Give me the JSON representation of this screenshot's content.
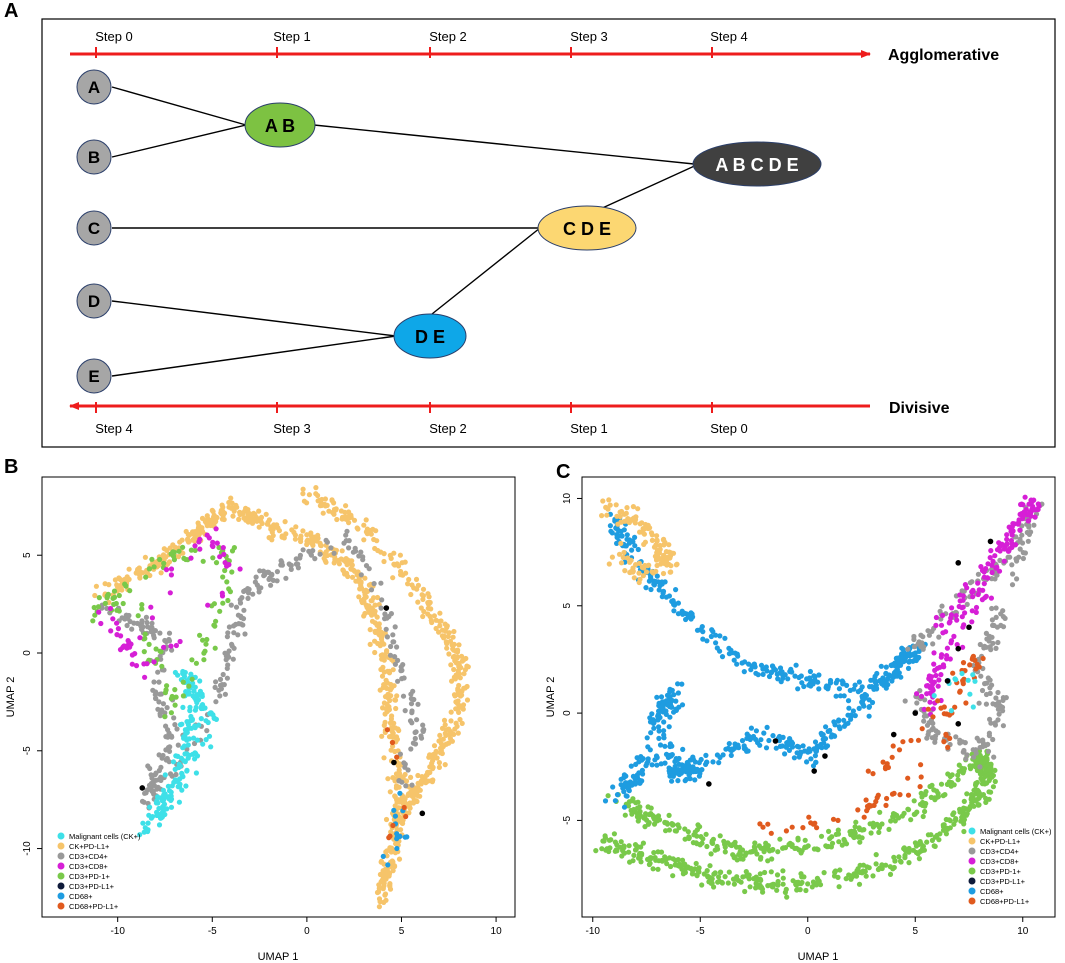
{
  "panels": {
    "a": "A",
    "b": "B",
    "c": "C"
  },
  "dendrogram": {
    "top_steps": [
      "Step 0",
      "Step 1",
      "Step 2",
      "Step 3",
      "Step 4"
    ],
    "bottom_steps": [
      "Step 4",
      "Step 3",
      "Step 2",
      "Step 1",
      "Step 0"
    ],
    "agglomerative_label": "Agglomerative",
    "divisive_label": "Divisive",
    "leaves": [
      "A",
      "B",
      "C",
      "D",
      "E"
    ],
    "clusters": {
      "ab": "A B",
      "de": "D E",
      "cde": "C D E",
      "abcde": "A B C D E"
    },
    "colors": {
      "arrow": "#ee1c1c",
      "leaf": "#a6a6a6",
      "ab": "#7dc242",
      "de": "#0ea7e8",
      "cde": "#fcd772",
      "abcde": "#404040"
    }
  },
  "chart_data": [
    {
      "type": "scatter",
      "panel": "B",
      "xlabel": "UMAP 1",
      "ylabel": "UMAP 2",
      "xlim": [
        -14,
        11
      ],
      "ylim": [
        -13.5,
        9
      ],
      "xticks": [
        "-10",
        "-5",
        "0",
        "5",
        "10"
      ],
      "xtick_values": [
        -10,
        -5,
        0,
        5,
        10
      ],
      "yticks": [
        "-10",
        "-5",
        "0",
        "5"
      ],
      "ytick_values": [
        -10,
        -5,
        0,
        5
      ],
      "legend_position": "bottom-left",
      "series": [
        {
          "name": "Malignant cells (CK+)",
          "color": "#3ee0e8"
        },
        {
          "name": "CK+PD-L1+",
          "color": "#f6c46a"
        },
        {
          "name": "CD3+CD4+",
          "color": "#999999"
        },
        {
          "name": "CD3+CD8+",
          "color": "#d61fd6"
        },
        {
          "name": "CD3+PD-1+",
          "color": "#79c94a"
        },
        {
          "name": "CD3+PD-L1+",
          "color": "#0f1a3a"
        },
        {
          "name": "CD68+",
          "color": "#1e9ce0"
        },
        {
          "name": "CD68+PD-L1+",
          "color": "#e05a1e"
        }
      ],
      "regions": [
        {
          "series": "CK+PD-L1+",
          "path": [
            [
              0,
              8
            ],
            [
              3,
              6.5
            ],
            [
              6,
              3
            ],
            [
              8,
              0
            ],
            [
              8,
              -3
            ],
            [
              6.5,
              -6
            ],
            [
              5,
              -8
            ],
            [
              4,
              -12.5
            ],
            [
              5,
              -8
            ],
            [
              4.5,
              -4
            ],
            [
              4,
              0
            ],
            [
              3,
              3.5
            ],
            [
              1,
              5.5
            ],
            [
              -2,
              6.5
            ],
            [
              -4,
              7.5
            ],
            [
              -6,
              6
            ],
            [
              -8,
              4.5
            ],
            [
              -11,
              3
            ]
          ],
          "n": 900
        },
        {
          "series": "CD3+CD4+",
          "path": [
            [
              -11,
              2.5
            ],
            [
              -9,
              1.5
            ],
            [
              -7.5,
              0.5
            ],
            [
              -8,
              -2
            ],
            [
              -7,
              -4
            ],
            [
              -8,
              -6
            ],
            [
              -8.5,
              -7.5
            ],
            [
              -7,
              -6
            ],
            [
              -5,
              -3
            ],
            [
              -4,
              0
            ],
            [
              -3.5,
              2.5
            ],
            [
              -2,
              4
            ],
            [
              0,
              5
            ],
            [
              2,
              6
            ],
            [
              4,
              3
            ],
            [
              5,
              -1
            ],
            [
              6,
              -4
            ],
            [
              5,
              -7
            ]
          ],
          "n": 320
        },
        {
          "series": "Malignant cells (CK+)",
          "path": [
            [
              -8.5,
              -9
            ],
            [
              -7.5,
              -7
            ],
            [
              -6.5,
              -5
            ],
            [
              -6,
              -3
            ],
            [
              -6.5,
              -1
            ],
            [
              -5,
              -3.5
            ],
            [
              -7,
              -7.5
            ],
            [
              -8,
              -8.5
            ]
          ],
          "n": 180
        },
        {
          "series": "CD3+PD-1+",
          "path": [
            [
              -11,
              3
            ],
            [
              -9,
              2
            ],
            [
              -8,
              0
            ],
            [
              -7,
              -3
            ],
            [
              -5,
              1
            ],
            [
              -4,
              5
            ],
            [
              -7,
              5
            ],
            [
              -9,
              4
            ],
            [
              -11,
              2
            ]
          ],
          "n": 110
        },
        {
          "series": "CD3+CD8+",
          "path": [
            [
              -11,
              2.5
            ],
            [
              -10,
              1
            ],
            [
              -9,
              -0.5
            ],
            [
              -7,
              4.5
            ],
            [
              -5,
              6
            ],
            [
              -4,
              4
            ],
            [
              -8,
              -1
            ],
            [
              -10,
              1.5
            ]
          ],
          "n": 60
        },
        {
          "series": "CD68+",
          "path": [
            [
              4,
              -11
            ],
            [
              5,
              -9
            ],
            [
              4.5,
              -7
            ]
          ],
          "n": 14
        },
        {
          "series": "CD68+PD-L1+",
          "path": [
            [
              4,
              -10
            ],
            [
              5,
              -8
            ],
            [
              3.5,
              1
            ]
          ],
          "n": 8
        }
      ],
      "highlight_points": [
        [
          4.2,
          2.3
        ],
        [
          4.6,
          -5.6
        ],
        [
          6.1,
          -8.2
        ],
        [
          -8.7,
          -6.9
        ]
      ]
    },
    {
      "type": "scatter",
      "panel": "C",
      "xlabel": "UMAP 1",
      "ylabel": "UMAP 2",
      "xlim": [
        -10.5,
        11.5
      ],
      "ylim": [
        -9.5,
        11
      ],
      "xticks": [
        "-10",
        "-5",
        "0",
        "5",
        "10"
      ],
      "xtick_values": [
        -10,
        -5,
        0,
        5,
        10
      ],
      "yticks": [
        "-5",
        "0",
        "5",
        "10"
      ],
      "ytick_values": [
        -5,
        0,
        5,
        10
      ],
      "legend_position": "bottom-right",
      "series": [
        {
          "name": "Malignant cells (CK+)",
          "color": "#3ee0e8"
        },
        {
          "name": "CK+PD-L1+",
          "color": "#f6c46a"
        },
        {
          "name": "CD3+CD4+",
          "color": "#999999"
        },
        {
          "name": "CD3+CD8+",
          "color": "#d61fd6"
        },
        {
          "name": "CD3+PD-1+",
          "color": "#79c94a"
        },
        {
          "name": "CD3+PD-L1+",
          "color": "#0f1a3a"
        },
        {
          "name": "CD68+",
          "color": "#1e9ce0"
        },
        {
          "name": "CD68+PD-L1+",
          "color": "#e05a1e"
        }
      ],
      "regions": [
        {
          "series": "CD3+PD-1+",
          "path": [
            [
              -9.5,
              -6
            ],
            [
              -7,
              -6.8
            ],
            [
              -4,
              -7.8
            ],
            [
              0,
              -8
            ],
            [
              4,
              -7
            ],
            [
              7,
              -5
            ],
            [
              8.5,
              -3
            ],
            [
              8,
              -2
            ],
            [
              5,
              -4.5
            ],
            [
              1,
              -6
            ],
            [
              -3,
              -6.5
            ],
            [
              -6,
              -5.5
            ],
            [
              -9,
              -4
            ]
          ],
          "n": 700
        },
        {
          "series": "CD68+",
          "path": [
            [
              -9,
              9
            ],
            [
              -8,
              7
            ],
            [
              -6,
              5
            ],
            [
              -4,
              3
            ],
            [
              -2,
              2
            ],
            [
              0,
              1.5
            ],
            [
              2,
              1
            ],
            [
              4,
              2
            ],
            [
              5,
              3
            ],
            [
              3,
              1
            ],
            [
              1,
              -1
            ],
            [
              0,
              -2
            ],
            [
              -2,
              -1
            ],
            [
              -4,
              -2
            ],
            [
              -6,
              -3
            ],
            [
              -7,
              0
            ],
            [
              -6,
              1
            ],
            [
              -9,
              -4
            ],
            [
              -7,
              -2
            ],
            [
              -5,
              -2.5
            ]
          ],
          "n": 650
        },
        {
          "series": "CK+PD-L1+",
          "path": [
            [
              -9.5,
              9.5
            ],
            [
              -8,
              9
            ],
            [
              -7,
              8
            ],
            [
              -6.5,
              7
            ],
            [
              -8,
              6.5
            ],
            [
              -9,
              7.5
            ]
          ],
          "n": 130
        },
        {
          "series": "CD3+CD4+",
          "path": [
            [
              5,
              3
            ],
            [
              7,
              5
            ],
            [
              9,
              7
            ],
            [
              10.5,
              9.5
            ],
            [
              9,
              5
            ],
            [
              8,
              2
            ],
            [
              9,
              0
            ],
            [
              8,
              -2
            ],
            [
              6,
              -1
            ],
            [
              5,
              1
            ]
          ],
          "n": 230
        },
        {
          "series": "CD3+CD8+",
          "path": [
            [
              6,
              4
            ],
            [
              8,
              6
            ],
            [
              10,
              9
            ],
            [
              10.5,
              10
            ],
            [
              9,
              7.5
            ],
            [
              7,
              3.5
            ],
            [
              6,
              2
            ],
            [
              5.5,
              0
            ]
          ],
          "n": 170
        },
        {
          "series": "CD68+PD-L1+",
          "path": [
            [
              3,
              -3
            ],
            [
              5,
              -1
            ],
            [
              7,
              1
            ],
            [
              8,
              3
            ],
            [
              6,
              -2
            ],
            [
              4,
              -4
            ],
            [
              1,
              -5
            ],
            [
              -2,
              -5.5
            ]
          ],
          "n": 90
        },
        {
          "series": "Malignant cells (CK+)",
          "path": [
            [
              7,
              0
            ],
            [
              8,
              2
            ],
            [
              6,
              1
            ]
          ],
          "n": 12
        }
      ],
      "highlight_points": [
        [
          8.5,
          8
        ],
        [
          7,
          7
        ],
        [
          7.5,
          4
        ],
        [
          7,
          3
        ],
        [
          6.5,
          1.5
        ],
        [
          5,
          0
        ],
        [
          4,
          -1
        ],
        [
          0.8,
          -2
        ],
        [
          0.3,
          -2.7
        ],
        [
          -4.6,
          -3.3
        ],
        [
          -1.5,
          -1.3
        ],
        [
          7,
          -0.5
        ]
      ]
    }
  ]
}
